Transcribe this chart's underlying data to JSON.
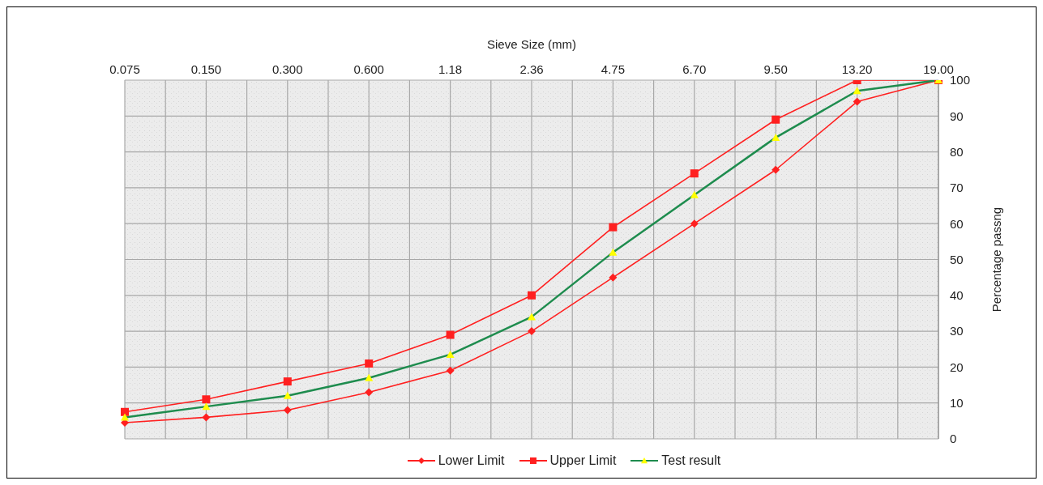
{
  "chart_data": {
    "type": "line",
    "xlabel": "Sieve Size (mm)",
    "ylabel": "Percentage passng",
    "categories": [
      "0.075",
      "0.150",
      "0.300",
      "0.600",
      "1.18",
      "2.36",
      "4.75",
      "6.70",
      "9.50",
      "13.20",
      "19.00"
    ],
    "series": [
      {
        "name": "Lower Limit",
        "color": "#ff2020",
        "marker": "diamond",
        "values": [
          4.5,
          6,
          8,
          13,
          19,
          30,
          45,
          60,
          75,
          94,
          100
        ]
      },
      {
        "name": "Upper Limit",
        "color": "#ff2020",
        "marker": "square",
        "values": [
          7.5,
          11,
          16,
          21,
          29,
          40,
          59,
          74,
          89,
          100,
          100
        ]
      },
      {
        "name": "Test result",
        "color": "#1e8c4e",
        "marker": "triangle",
        "colors": [
          "#ffff00",
          "#ffff00",
          "#ffff00",
          "#ffff00",
          "#ffff00",
          "#ffff00",
          "#ffff00",
          "#ffff00",
          "#ffff00",
          "#ffff00",
          "#ffff00"
        ],
        "values": [
          6,
          9,
          12,
          17,
          23.5,
          34,
          52,
          68,
          84,
          97,
          100
        ]
      }
    ],
    "ylim": [
      0,
      100
    ],
    "yticks": [
      0,
      10,
      20,
      30,
      40,
      50,
      60,
      70,
      80,
      90,
      100
    ],
    "grid": true,
    "legend": "bottom"
  }
}
